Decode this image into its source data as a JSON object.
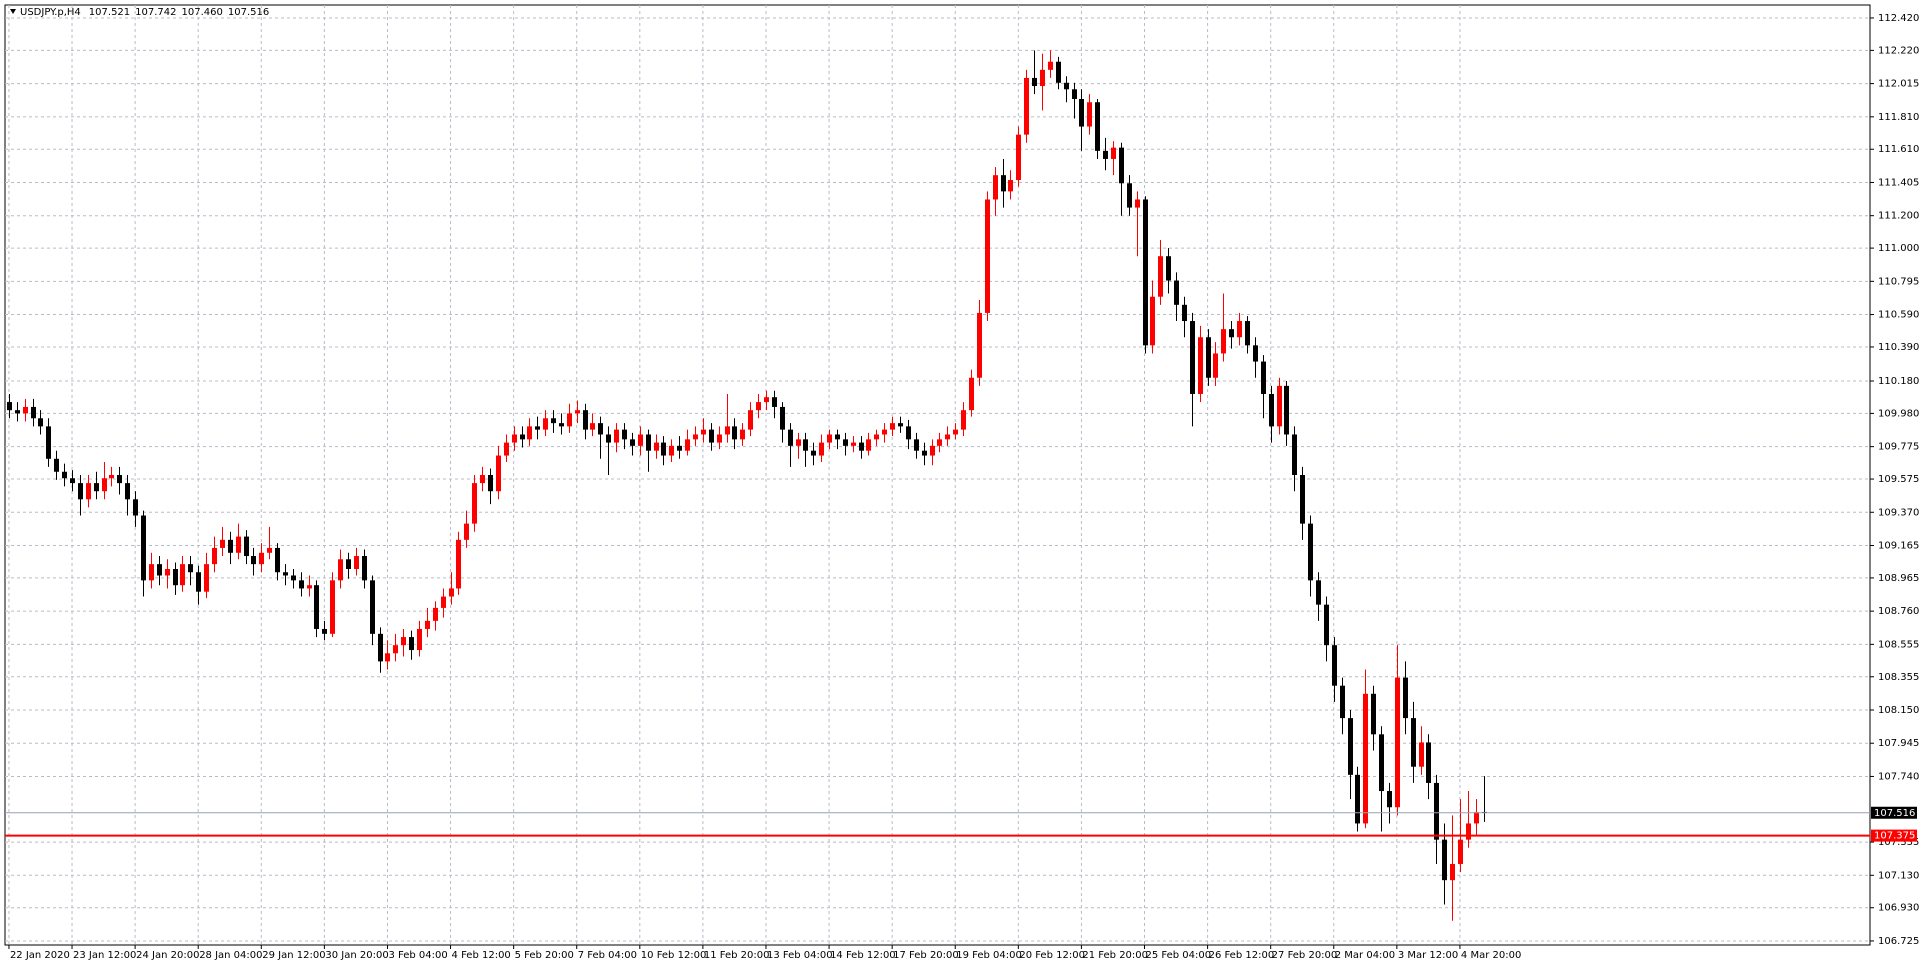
{
  "chart_data": {
    "type": "candlestick",
    "header": {
      "label": "USDJPY.p,H4",
      "values": [
        107.521,
        107.742,
        107.46,
        107.516
      ],
      "value_labels": [
        "107.521",
        "107.742",
        "107.460",
        "107.516"
      ]
    },
    "up_color": "#ff0000",
    "down_color": "#000000",
    "grid": true,
    "xlim": [
      -0.5,
      236
    ],
    "ylim": [
      106.7,
      112.5
    ],
    "xticks": [
      {
        "value": 0,
        "label": "22 Jan 2020"
      },
      {
        "value": 8,
        "label": "23 Jan 12:00"
      },
      {
        "value": 16,
        "label": "24 Jan 20:00"
      },
      {
        "value": 24,
        "label": "28 Jan 04:00"
      },
      {
        "value": 32,
        "label": "29 Jan 12:00"
      },
      {
        "value": 40,
        "label": "30 Jan 20:00"
      },
      {
        "value": 48,
        "label": "3 Feb 04:00"
      },
      {
        "value": 56,
        "label": "4 Feb 12:00"
      },
      {
        "value": 64,
        "label": "5 Feb 20:00"
      },
      {
        "value": 72,
        "label": "7 Feb 04:00"
      },
      {
        "value": 80,
        "label": "10 Feb 12:00"
      },
      {
        "value": 88,
        "label": "11 Feb 20:00"
      },
      {
        "value": 96,
        "label": "13 Feb 04:00"
      },
      {
        "value": 104,
        "label": "14 Feb 12:00"
      },
      {
        "value": 112,
        "label": "17 Feb 20:00"
      },
      {
        "value": 120,
        "label": "19 Feb 04:00"
      },
      {
        "value": 128,
        "label": "20 Feb 12:00"
      },
      {
        "value": 136,
        "label": "21 Feb 20:00"
      },
      {
        "value": 144,
        "label": "25 Feb 04:00"
      },
      {
        "value": 152,
        "label": "26 Feb 12:00"
      },
      {
        "value": 160,
        "label": "27 Feb 20:00"
      },
      {
        "value": 168,
        "label": "2 Mar 04:00"
      },
      {
        "value": 176,
        "label": "3 Mar 12:00"
      },
      {
        "value": 184,
        "label": "4 Mar 20:00"
      }
    ],
    "yticks": [
      {
        "value": 112.42,
        "label": "112.420"
      },
      {
        "value": 112.22,
        "label": "112.220"
      },
      112.015,
      {
        "value": 111.81,
        "label": "111.810"
      },
      {
        "value": 111.61,
        "label": "111.610"
      },
      111.405,
      {
        "value": 111.2,
        "label": "111.200"
      },
      {
        "value": 111.0,
        "label": "111.000"
      },
      110.795,
      {
        "value": 110.59,
        "label": "110.590"
      },
      {
        "value": 110.39,
        "label": "110.390"
      },
      {
        "value": 110.18,
        "label": "110.180"
      },
      {
        "value": 109.98,
        "label": "109.980"
      },
      109.775,
      109.575,
      {
        "value": 109.37,
        "label": "109.370"
      },
      109.165,
      108.965,
      {
        "value": 108.76,
        "label": "108.760"
      },
      108.555,
      108.355,
      {
        "value": 108.15,
        "label": "108.150"
      },
      107.945,
      {
        "value": 107.74,
        "label": "107.740"
      },
      107.335,
      {
        "value": 107.13,
        "label": "107.130"
      },
      {
        "value": 106.93,
        "label": "106.930"
      },
      106.725
    ],
    "hlines": [
      {
        "value": 107.516,
        "color": "#9aa0b4",
        "box": "#000000"
      },
      {
        "value": 107.375,
        "color": "#ff0000",
        "box": "#ff0000"
      }
    ],
    "candles": [
      [
        110.05,
        110.1,
        109.95,
        110.0
      ],
      [
        110.0,
        110.05,
        109.93,
        109.98
      ],
      [
        109.98,
        110.07,
        109.93,
        110.02
      ],
      [
        110.02,
        110.07,
        109.9,
        109.95
      ],
      [
        109.95,
        110.0,
        109.85,
        109.9
      ],
      [
        109.9,
        109.95,
        109.65,
        109.7
      ],
      [
        109.7,
        109.75,
        109.57,
        109.62
      ],
      [
        109.62,
        109.67,
        109.53,
        109.58
      ],
      [
        109.58,
        109.63,
        109.5,
        109.55
      ],
      [
        109.55,
        109.6,
        109.35,
        109.45
      ],
      [
        109.45,
        109.6,
        109.4,
        109.55
      ],
      [
        109.55,
        109.62,
        109.45,
        109.5
      ],
      [
        109.5,
        109.68,
        109.45,
        109.58
      ],
      [
        109.58,
        109.65,
        109.53,
        109.6
      ],
      [
        109.6,
        109.65,
        109.48,
        109.55
      ],
      [
        109.55,
        109.6,
        109.35,
        109.45
      ],
      [
        109.45,
        109.5,
        109.28,
        109.35
      ],
      [
        109.35,
        109.38,
        108.85,
        108.95
      ],
      [
        108.95,
        109.12,
        108.9,
        109.05
      ],
      [
        109.05,
        109.1,
        108.92,
        108.98
      ],
      [
        108.98,
        109.08,
        108.9,
        109.02
      ],
      [
        109.02,
        109.06,
        108.86,
        108.92
      ],
      [
        108.92,
        109.1,
        108.88,
        109.05
      ],
      [
        109.05,
        109.1,
        108.92,
        109.0
      ],
      [
        109.0,
        109.04,
        108.8,
        108.88
      ],
      [
        108.88,
        109.12,
        108.84,
        109.05
      ],
      [
        109.05,
        109.22,
        109.0,
        109.15
      ],
      [
        109.15,
        109.28,
        109.1,
        109.2
      ],
      [
        109.2,
        109.25,
        109.05,
        109.12
      ],
      [
        109.12,
        109.3,
        109.08,
        109.22
      ],
      [
        109.22,
        109.26,
        109.05,
        109.1
      ],
      [
        109.1,
        109.15,
        108.98,
        109.05
      ],
      [
        109.05,
        109.18,
        109.0,
        109.12
      ],
      [
        109.12,
        109.28,
        109.08,
        109.15
      ],
      [
        109.15,
        109.18,
        108.95,
        109.0
      ],
      [
        109.0,
        109.05,
        108.92,
        108.98
      ],
      [
        108.98,
        109.02,
        108.9,
        108.95
      ],
      [
        108.95,
        109.0,
        108.85,
        108.9
      ],
      [
        108.9,
        108.98,
        108.85,
        108.92
      ],
      [
        108.92,
        108.95,
        108.6,
        108.65
      ],
      [
        108.65,
        108.7,
        108.58,
        108.62
      ],
      [
        108.62,
        109.0,
        108.6,
        108.95
      ],
      [
        108.95,
        109.14,
        108.9,
        109.08
      ],
      [
        109.08,
        109.12,
        108.96,
        109.02
      ],
      [
        109.02,
        109.15,
        108.98,
        109.1
      ],
      [
        109.1,
        109.14,
        108.9,
        108.95
      ],
      [
        108.95,
        108.98,
        108.55,
        108.62
      ],
      [
        108.62,
        108.66,
        108.38,
        108.45
      ],
      [
        108.45,
        108.58,
        108.4,
        108.5
      ],
      [
        108.5,
        108.62,
        108.45,
        108.55
      ],
      [
        108.55,
        108.65,
        108.48,
        108.6
      ],
      [
        108.6,
        108.64,
        108.46,
        108.52
      ],
      [
        108.52,
        108.7,
        108.48,
        108.65
      ],
      [
        108.65,
        108.78,
        108.6,
        108.7
      ],
      [
        108.7,
        108.82,
        108.64,
        108.78
      ],
      [
        108.78,
        108.9,
        108.72,
        108.85
      ],
      [
        108.85,
        109.0,
        108.8,
        108.9
      ],
      [
        108.9,
        109.25,
        108.86,
        109.2
      ],
      [
        109.2,
        109.38,
        109.15,
        109.3
      ],
      [
        109.3,
        109.6,
        109.25,
        109.55
      ],
      [
        109.55,
        109.65,
        109.5,
        109.6
      ],
      [
        109.6,
        109.64,
        109.42,
        109.5
      ],
      [
        109.5,
        109.78,
        109.45,
        109.72
      ],
      [
        109.72,
        109.85,
        109.68,
        109.8
      ],
      [
        109.8,
        109.9,
        109.75,
        109.85
      ],
      [
        109.85,
        109.9,
        109.77,
        109.82
      ],
      [
        109.82,
        109.95,
        109.78,
        109.9
      ],
      [
        109.9,
        109.96,
        109.82,
        109.88
      ],
      [
        109.88,
        110.0,
        109.84,
        109.95
      ],
      [
        109.95,
        110.0,
        109.86,
        109.92
      ],
      [
        109.92,
        109.98,
        109.85,
        109.9
      ],
      [
        109.9,
        110.04,
        109.86,
        109.98
      ],
      [
        109.98,
        110.06,
        109.92,
        110.0
      ],
      [
        110.0,
        110.04,
        109.82,
        109.88
      ],
      [
        109.88,
        109.98,
        109.84,
        109.92
      ],
      [
        109.92,
        109.96,
        109.7,
        109.85
      ],
      [
        109.85,
        109.9,
        109.6,
        109.8
      ],
      [
        109.8,
        109.92,
        109.74,
        109.88
      ],
      [
        109.88,
        109.92,
        109.76,
        109.82
      ],
      [
        109.82,
        109.86,
        109.72,
        109.78
      ],
      [
        109.78,
        109.9,
        109.72,
        109.85
      ],
      [
        109.85,
        109.88,
        109.62,
        109.75
      ],
      [
        109.75,
        109.85,
        109.7,
        109.8
      ],
      [
        109.8,
        109.84,
        109.66,
        109.72
      ],
      [
        109.72,
        109.82,
        109.68,
        109.78
      ],
      [
        109.78,
        109.84,
        109.7,
        109.75
      ],
      [
        109.75,
        109.88,
        109.72,
        109.82
      ],
      [
        109.82,
        109.9,
        109.78,
        109.85
      ],
      [
        109.85,
        109.95,
        109.8,
        109.88
      ],
      [
        109.88,
        109.92,
        109.75,
        109.8
      ],
      [
        109.8,
        109.9,
        109.76,
        109.85
      ],
      [
        109.85,
        110.1,
        109.8,
        109.9
      ],
      [
        109.9,
        109.95,
        109.76,
        109.82
      ],
      [
        109.82,
        109.92,
        109.78,
        109.88
      ],
      [
        109.88,
        110.05,
        109.84,
        110.0
      ],
      [
        110.0,
        110.1,
        109.95,
        110.05
      ],
      [
        110.05,
        110.12,
        110.0,
        110.08
      ],
      [
        110.08,
        110.12,
        109.95,
        110.02
      ],
      [
        110.02,
        110.05,
        109.8,
        109.88
      ],
      [
        109.88,
        109.92,
        109.65,
        109.78
      ],
      [
        109.78,
        109.86,
        109.7,
        109.82
      ],
      [
        109.82,
        109.86,
        109.65,
        109.75
      ],
      [
        109.75,
        109.8,
        109.66,
        109.72
      ],
      [
        109.72,
        109.85,
        109.68,
        109.8
      ],
      [
        109.8,
        109.88,
        109.76,
        109.85
      ],
      [
        109.85,
        109.88,
        109.76,
        109.82
      ],
      [
        109.82,
        109.86,
        109.72,
        109.78
      ],
      [
        109.78,
        109.84,
        109.74,
        109.8
      ],
      [
        109.8,
        109.84,
        109.7,
        109.75
      ],
      [
        109.75,
        109.86,
        109.72,
        109.82
      ],
      [
        109.82,
        109.88,
        109.78,
        109.85
      ],
      [
        109.85,
        109.92,
        109.8,
        109.88
      ],
      [
        109.88,
        109.96,
        109.84,
        109.92
      ],
      [
        109.92,
        109.96,
        109.86,
        109.9
      ],
      [
        109.9,
        109.94,
        109.76,
        109.82
      ],
      [
        109.82,
        109.86,
        109.7,
        109.75
      ],
      [
        109.75,
        109.8,
        109.66,
        109.72
      ],
      [
        109.72,
        109.82,
        109.66,
        109.78
      ],
      [
        109.78,
        109.86,
        109.74,
        109.82
      ],
      [
        109.82,
        109.9,
        109.78,
        109.85
      ],
      [
        109.85,
        109.92,
        109.82,
        109.88
      ],
      [
        109.88,
        110.05,
        109.84,
        110.0
      ],
      [
        110.0,
        110.25,
        109.96,
        110.2
      ],
      [
        110.2,
        110.68,
        110.15,
        110.6
      ],
      [
        110.6,
        111.35,
        110.55,
        111.3
      ],
      [
        111.3,
        111.5,
        111.2,
        111.45
      ],
      [
        111.45,
        111.55,
        111.25,
        111.35
      ],
      [
        111.35,
        111.48,
        111.3,
        111.42
      ],
      [
        111.42,
        111.75,
        111.38,
        111.7
      ],
      [
        111.7,
        112.1,
        111.65,
        112.05
      ],
      [
        112.05,
        112.22,
        111.95,
        112.0
      ],
      [
        112.0,
        112.2,
        111.85,
        112.1
      ],
      [
        112.1,
        112.22,
        112.05,
        112.15
      ],
      [
        112.15,
        112.18,
        111.98,
        112.02
      ],
      [
        112.02,
        112.06,
        111.9,
        111.98
      ],
      [
        111.98,
        112.02,
        111.8,
        111.92
      ],
      [
        111.92,
        111.98,
        111.6,
        111.75
      ],
      [
        111.75,
        111.95,
        111.7,
        111.9
      ],
      [
        111.9,
        111.92,
        111.55,
        111.6
      ],
      [
        111.6,
        111.68,
        111.48,
        111.55
      ],
      [
        111.55,
        111.66,
        111.45,
        111.62
      ],
      [
        111.62,
        111.65,
        111.2,
        111.4
      ],
      [
        111.4,
        111.45,
        111.2,
        111.25
      ],
      [
        111.25,
        111.35,
        110.95,
        111.3
      ],
      [
        111.3,
        111.32,
        110.35,
        110.4
      ],
      [
        110.4,
        110.8,
        110.35,
        110.7
      ],
      [
        110.7,
        111.05,
        110.65,
        110.95
      ],
      [
        110.95,
        111.0,
        110.72,
        110.8
      ],
      [
        110.8,
        110.85,
        110.55,
        110.65
      ],
      [
        110.65,
        110.7,
        110.45,
        110.55
      ],
      [
        110.55,
        110.6,
        109.9,
        110.1
      ],
      [
        110.1,
        110.52,
        110.05,
        110.45
      ],
      [
        110.45,
        110.5,
        110.15,
        110.2
      ],
      [
        110.2,
        110.42,
        110.15,
        110.35
      ],
      [
        110.35,
        110.72,
        110.3,
        110.5
      ],
      [
        110.5,
        110.55,
        110.38,
        110.45
      ],
      [
        110.45,
        110.6,
        110.4,
        110.55
      ],
      [
        110.55,
        110.58,
        110.35,
        110.4
      ],
      [
        110.4,
        110.45,
        110.2,
        110.3
      ],
      [
        110.3,
        110.34,
        109.95,
        110.1
      ],
      [
        110.1,
        110.15,
        109.8,
        109.9
      ],
      [
        109.9,
        110.2,
        109.85,
        110.15
      ],
      [
        110.15,
        110.18,
        109.78,
        109.85
      ],
      [
        109.85,
        109.9,
        109.5,
        109.6
      ],
      [
        109.6,
        109.65,
        109.2,
        109.3
      ],
      [
        109.3,
        109.35,
        108.85,
        108.95
      ],
      [
        108.95,
        109.0,
        108.7,
        108.8
      ],
      [
        108.8,
        108.85,
        108.45,
        108.55
      ],
      [
        108.55,
        108.6,
        108.2,
        108.3
      ],
      [
        108.3,
        108.35,
        108.0,
        108.1
      ],
      [
        108.1,
        108.15,
        107.6,
        107.75
      ],
      [
        107.75,
        107.8,
        107.4,
        107.45
      ],
      [
        107.45,
        108.4,
        107.42,
        108.25
      ],
      [
        108.25,
        108.3,
        107.9,
        108.0
      ],
      [
        108.0,
        108.05,
        107.4,
        107.65
      ],
      [
        107.65,
        107.7,
        107.45,
        107.55
      ],
      [
        107.55,
        108.55,
        107.5,
        108.35
      ],
      [
        108.35,
        108.45,
        108.0,
        108.1
      ],
      [
        108.1,
        108.2,
        107.7,
        107.8
      ],
      [
        107.8,
        108.05,
        107.75,
        107.95
      ],
      [
        107.95,
        108.0,
        107.6,
        107.7
      ],
      [
        107.7,
        107.75,
        107.2,
        107.35
      ],
      [
        107.35,
        107.45,
        106.95,
        107.1
      ],
      [
        107.1,
        107.5,
        106.85,
        107.2
      ],
      [
        107.2,
        107.6,
        107.15,
        107.35
      ],
      [
        107.35,
        107.65,
        107.3,
        107.45
      ],
      [
        107.45,
        107.6,
        107.38,
        107.52
      ],
      [
        107.521,
        107.742,
        107.46,
        107.516
      ]
    ]
  }
}
